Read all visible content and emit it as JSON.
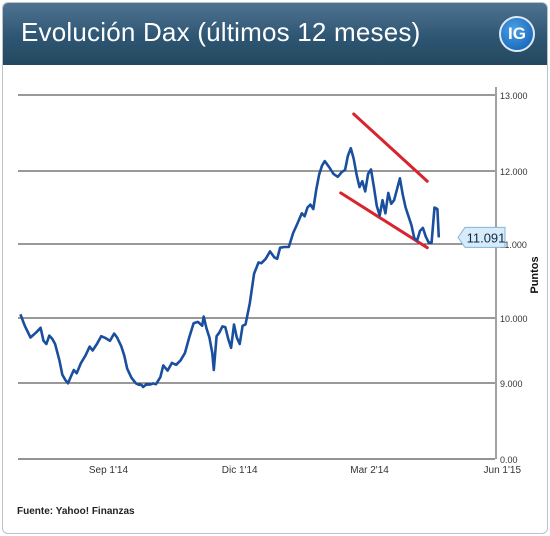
{
  "header": {
    "title": "Evolución Dax (últimos 12 meses)",
    "logo_text": "IG"
  },
  "source": "Fuente: Yahoo! Finanzas",
  "chart_data": {
    "type": "line",
    "title": "Evolución Dax (últimos 12 meses)",
    "xlabel": "",
    "ylabel": "Puntos",
    "ylim": [
      0,
      13000
    ],
    "y_ticks": [
      {
        "value": 0,
        "label": "0.00"
      },
      {
        "value": 9000,
        "label": "9.000"
      },
      {
        "value": 10000,
        "label": "10.000"
      },
      {
        "value": 11000,
        "label": "11.000"
      },
      {
        "value": 12000,
        "label": "12.000"
      },
      {
        "value": 13000,
        "label": "13.000"
      }
    ],
    "x_range": [
      0,
      305
    ],
    "x_ticks": [
      {
        "day": 62,
        "label": "Sep 1'14"
      },
      {
        "day": 153,
        "label": "Dic 1'14"
      },
      {
        "day": 243,
        "label": "Mar 2'14"
      },
      {
        "day": 335,
        "label": "Jun 1'15"
      }
    ],
    "grid": true,
    "series": [
      {
        "color": "#1a4f9e",
        "points": [
          [
            1,
            10050
          ],
          [
            4,
            9880
          ],
          [
            8,
            9700
          ],
          [
            12,
            9780
          ],
          [
            15,
            9850
          ],
          [
            17,
            9650
          ],
          [
            19,
            9600
          ],
          [
            21,
            9730
          ],
          [
            23,
            9680
          ],
          [
            25,
            9600
          ],
          [
            28,
            9350
          ],
          [
            30,
            9130
          ],
          [
            32,
            9050
          ],
          [
            34,
            8960
          ],
          [
            36,
            9100
          ],
          [
            38,
            9200
          ],
          [
            40,
            9150
          ],
          [
            43,
            9310
          ],
          [
            46,
            9420
          ],
          [
            49,
            9560
          ],
          [
            51,
            9500
          ],
          [
            54,
            9600
          ],
          [
            57,
            9720
          ],
          [
            60,
            9690
          ],
          [
            63,
            9650
          ],
          [
            66,
            9760
          ],
          [
            68,
            9700
          ],
          [
            71,
            9560
          ],
          [
            73,
            9420
          ],
          [
            75,
            9220
          ],
          [
            78,
            9080
          ],
          [
            81,
            8970
          ],
          [
            83,
            8800
          ],
          [
            85,
            8760
          ],
          [
            86,
            8530
          ],
          [
            88,
            8800
          ],
          [
            91,
            8820
          ],
          [
            93,
            8950
          ],
          [
            95,
            8860
          ],
          [
            98,
            9090
          ],
          [
            100,
            9270
          ],
          [
            103,
            9190
          ],
          [
            106,
            9310
          ],
          [
            109,
            9280
          ],
          [
            112,
            9350
          ],
          [
            115,
            9460
          ],
          [
            118,
            9700
          ],
          [
            121,
            9920
          ],
          [
            124,
            9940
          ],
          [
            127,
            9880
          ],
          [
            128,
            10020
          ],
          [
            130,
            9840
          ],
          [
            132,
            9700
          ],
          [
            134,
            9460
          ],
          [
            135,
            9200
          ],
          [
            137,
            9720
          ],
          [
            139,
            9780
          ],
          [
            141,
            9870
          ],
          [
            143,
            9860
          ],
          [
            145,
            9680
          ],
          [
            147,
            9540
          ],
          [
            149,
            9900
          ],
          [
            151,
            9700
          ],
          [
            153,
            9600
          ],
          [
            155,
            9880
          ],
          [
            157,
            9900
          ],
          [
            160,
            10200
          ],
          [
            163,
            10600
          ],
          [
            166,
            10750
          ],
          [
            168,
            10740
          ],
          [
            171,
            10800
          ],
          [
            174,
            10900
          ],
          [
            177,
            10820
          ],
          [
            179,
            10800
          ],
          [
            181,
            10950
          ],
          [
            184,
            10960
          ],
          [
            187,
            10960
          ],
          [
            190,
            11150
          ],
          [
            193,
            11280
          ],
          [
            196,
            11420
          ],
          [
            198,
            11380
          ],
          [
            200,
            11500
          ],
          [
            202,
            11540
          ],
          [
            204,
            11480
          ],
          [
            206,
            11740
          ],
          [
            208,
            11950
          ],
          [
            210,
            12070
          ],
          [
            212,
            12130
          ],
          [
            215,
            12050
          ],
          [
            218,
            11960
          ],
          [
            221,
            11920
          ],
          [
            224,
            11990
          ],
          [
            226,
            12010
          ],
          [
            228,
            12200
          ],
          [
            230,
            12300
          ],
          [
            232,
            12160
          ],
          [
            234,
            11950
          ],
          [
            236,
            11780
          ],
          [
            238,
            11860
          ],
          [
            240,
            11720
          ],
          [
            242,
            11960
          ],
          [
            244,
            12020
          ],
          [
            246,
            11780
          ],
          [
            248,
            11520
          ],
          [
            250,
            11390
          ],
          [
            252,
            11600
          ],
          [
            254,
            11420
          ],
          [
            256,
            11700
          ],
          [
            258,
            11550
          ],
          [
            260,
            11600
          ],
          [
            262,
            11750
          ],
          [
            264,
            11900
          ],
          [
            266,
            11680
          ],
          [
            268,
            11500
          ],
          [
            270,
            11380
          ],
          [
            272,
            11260
          ],
          [
            274,
            11080
          ],
          [
            276,
            11050
          ],
          [
            278,
            11180
          ],
          [
            280,
            11220
          ],
          [
            282,
            11100
          ],
          [
            284,
            11020
          ],
          [
            286,
            11020
          ],
          [
            288,
            11500
          ],
          [
            290,
            11480
          ],
          [
            291,
            11091
          ]
        ]
      }
    ],
    "trend_lines": [
      {
        "color": "#d9232e",
        "points": [
          [
            232,
            12750
          ],
          [
            283,
            11860
          ]
        ]
      },
      {
        "color": "#d9232e",
        "points": [
          [
            223,
            11700
          ],
          [
            283,
            10950
          ]
        ]
      }
    ],
    "annotations": [
      {
        "text": "11.091",
        "value": 11091
      }
    ]
  }
}
